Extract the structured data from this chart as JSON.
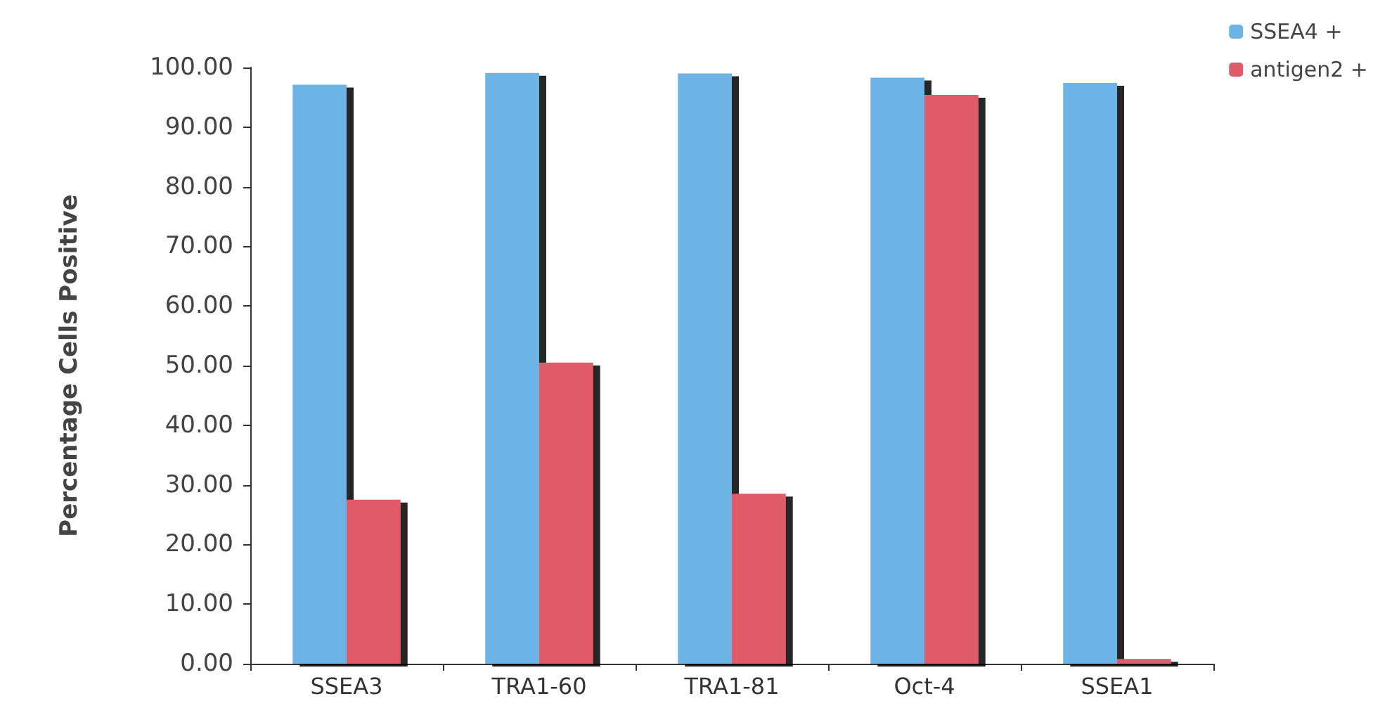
{
  "chart_data": {
    "type": "bar",
    "ylabel": "Percentage Cells Positive",
    "categories": [
      "SSEA3",
      "TRA1-60",
      "TRA1-81",
      "Oct-4",
      "SSEA1"
    ],
    "series": [
      {
        "name": "SSEA4 +",
        "color": "#6cb4e6",
        "values": [
          97.1,
          99.1,
          99.0,
          98.3,
          97.4
        ]
      },
      {
        "name": "antigen2 +",
        "color": "#e05a6a",
        "values": [
          27.5,
          50.5,
          28.5,
          95.4,
          0.8
        ]
      }
    ],
    "ylim": [
      0,
      100
    ],
    "yticks": [
      {
        "value": 0,
        "label": "0.00"
      },
      {
        "value": 10,
        "label": "10.00"
      },
      {
        "value": 20,
        "label": "20.00"
      },
      {
        "value": 30,
        "label": "30.00"
      },
      {
        "value": 40,
        "label": "40.00"
      },
      {
        "value": 50,
        "label": "50.00"
      },
      {
        "value": 60,
        "label": "60.00"
      },
      {
        "value": 70,
        "label": "70.00"
      },
      {
        "value": 80,
        "label": "80.00"
      },
      {
        "value": 90,
        "label": "90.00"
      },
      {
        "value": 100,
        "label": "100.00"
      }
    ],
    "grid": false,
    "legend": "top right"
  }
}
